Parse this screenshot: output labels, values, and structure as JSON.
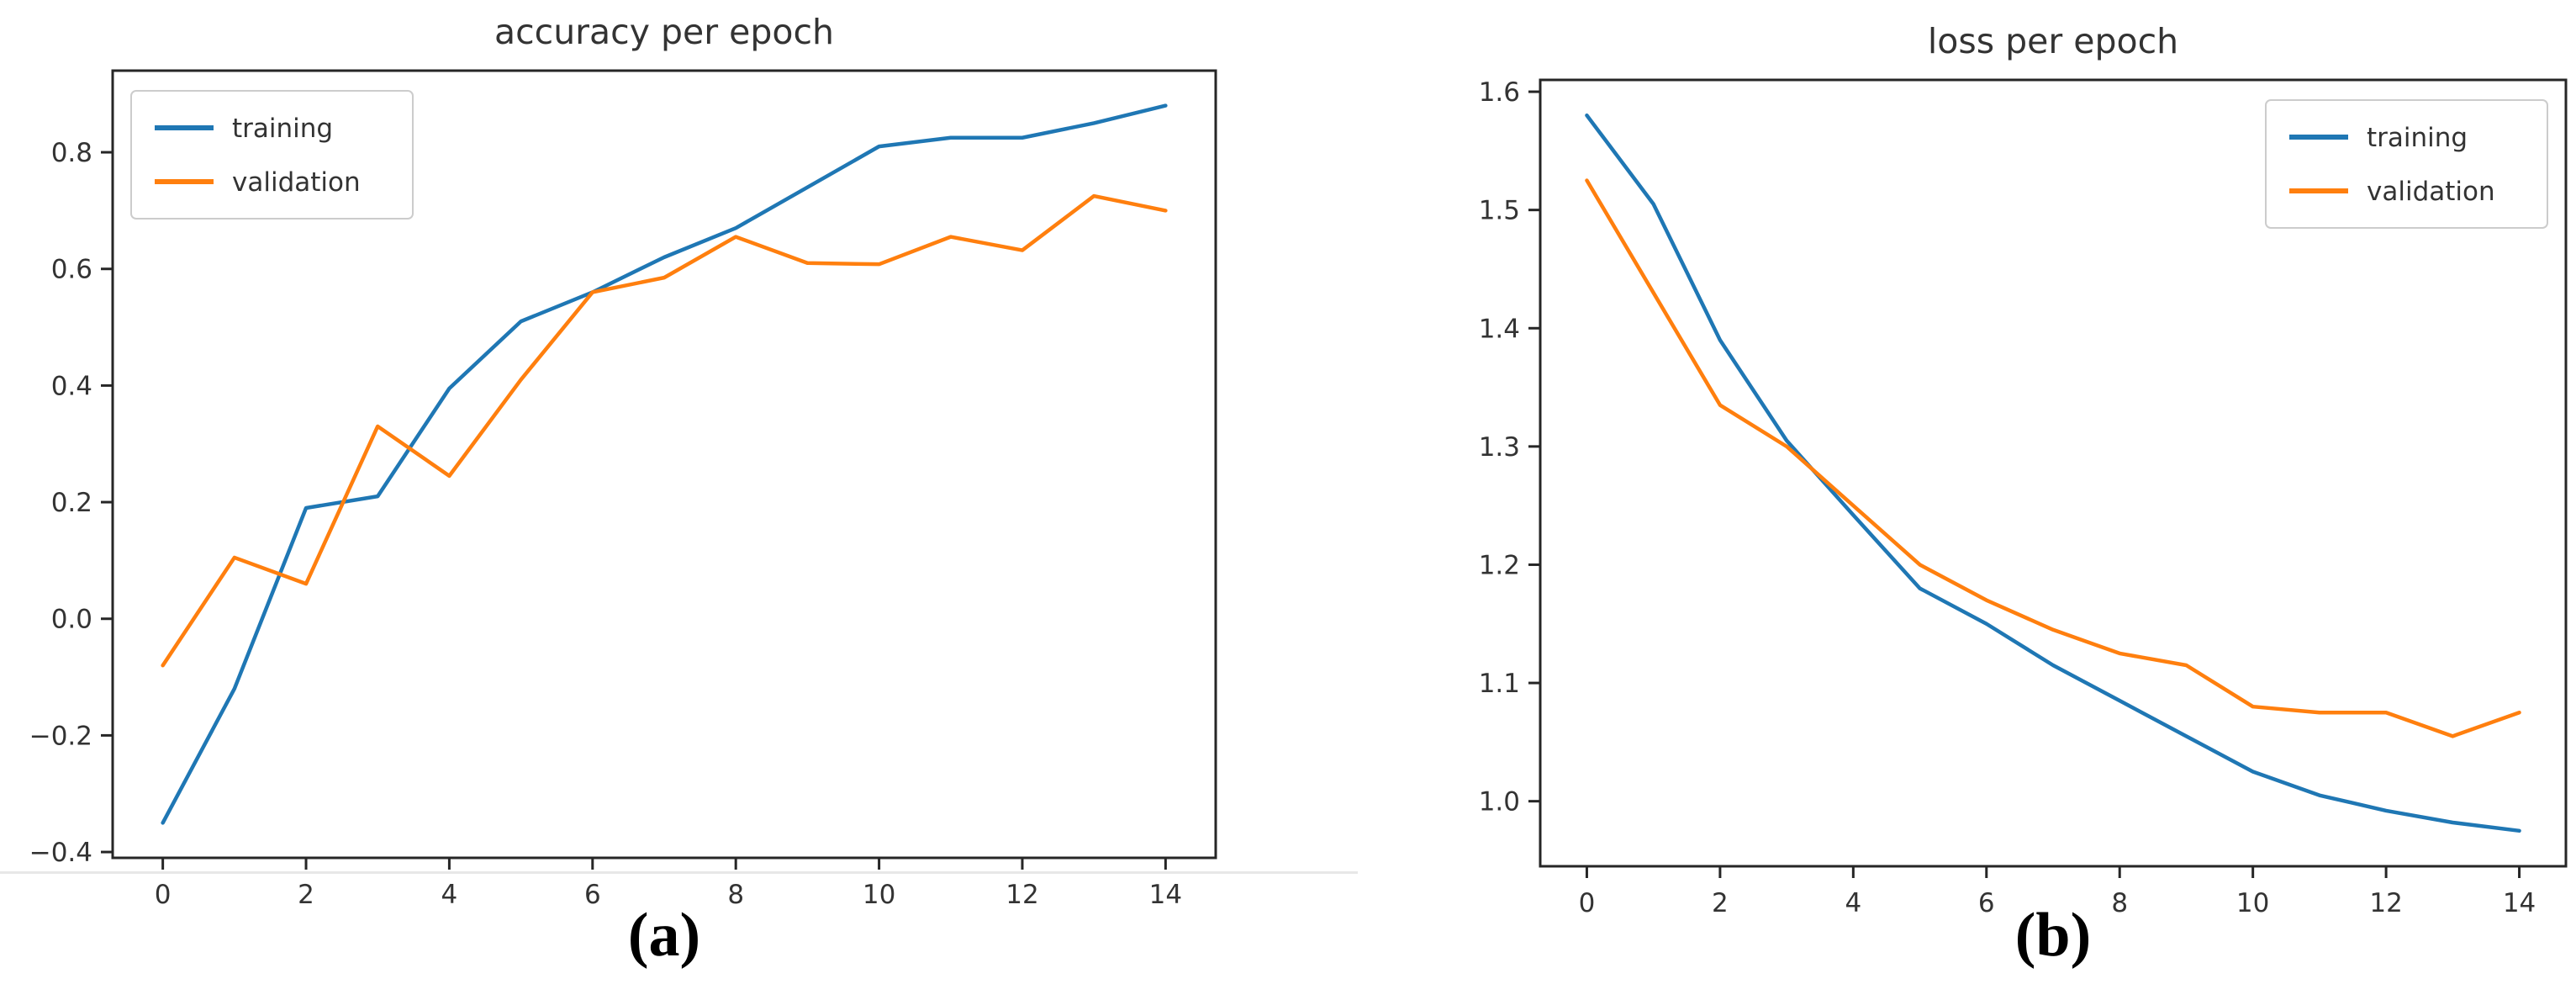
{
  "figure": {
    "captions": {
      "a": "(a)",
      "b": "(b)"
    }
  },
  "colors": {
    "training": "#1f77b4",
    "validation": "#ff7f0e",
    "axis": "#262626",
    "text": "#333333",
    "legend_border": "#cccccc",
    "separator": "#e7e7e7"
  },
  "chart_data": [
    {
      "id": "accuracy",
      "type": "line",
      "title": "accuracy per epoch",
      "xlabel": "",
      "ylabel": "",
      "x": [
        0,
        1,
        2,
        3,
        4,
        5,
        6,
        7,
        8,
        9,
        10,
        11,
        12,
        13,
        14
      ],
      "series": [
        {
          "name": "training",
          "color_key": "training",
          "values": [
            -0.35,
            -0.12,
            0.19,
            0.21,
            0.395,
            0.51,
            0.56,
            0.62,
            0.67,
            0.74,
            0.81,
            0.825,
            0.825,
            0.85,
            0.88
          ]
        },
        {
          "name": "validation",
          "color_key": "validation",
          "values": [
            -0.08,
            0.105,
            0.06,
            0.33,
            0.245,
            0.41,
            0.56,
            0.585,
            0.655,
            0.61,
            0.608,
            0.655,
            0.632,
            0.725,
            0.7
          ]
        }
      ],
      "xlim": [
        -0.7,
        14.7
      ],
      "ylim": [
        -0.41,
        0.94
      ],
      "xticks": [
        0,
        2,
        4,
        6,
        8,
        10,
        12,
        14
      ],
      "xtick_labels": [
        "0",
        "2",
        "4",
        "6",
        "8",
        "10",
        "12",
        "14"
      ],
      "yticks": [
        -0.4,
        -0.2,
        0.0,
        0.2,
        0.4,
        0.6,
        0.8
      ],
      "ytick_labels": [
        "−0.4",
        "−0.2",
        "0.0",
        "0.2",
        "0.4",
        "0.6",
        "0.8"
      ],
      "legend_position": "upper-left",
      "legend_entries": [
        "training",
        "validation"
      ],
      "grid": false
    },
    {
      "id": "loss",
      "type": "line",
      "title": "loss per epoch",
      "xlabel": "",
      "ylabel": "",
      "x": [
        0,
        1,
        2,
        3,
        4,
        5,
        6,
        7,
        8,
        9,
        10,
        11,
        12,
        13,
        14
      ],
      "series": [
        {
          "name": "training",
          "color_key": "training",
          "values": [
            1.58,
            1.505,
            1.39,
            1.305,
            1.242,
            1.18,
            1.15,
            1.115,
            1.085,
            1.055,
            1.025,
            1.005,
            0.992,
            0.982,
            0.975
          ]
        },
        {
          "name": "validation",
          "color_key": "validation",
          "values": [
            1.525,
            1.43,
            1.335,
            1.3,
            1.25,
            1.2,
            1.17,
            1.145,
            1.125,
            1.115,
            1.08,
            1.075,
            1.075,
            1.055,
            1.075
          ]
        }
      ],
      "xlim": [
        -0.7,
        14.7
      ],
      "ylim": [
        0.945,
        1.61
      ],
      "xticks": [
        0,
        2,
        4,
        6,
        8,
        10,
        12,
        14
      ],
      "xtick_labels": [
        "0",
        "2",
        "4",
        "6",
        "8",
        "10",
        "12",
        "14"
      ],
      "yticks": [
        1.0,
        1.1,
        1.2,
        1.3,
        1.4,
        1.5,
        1.6
      ],
      "ytick_labels": [
        "1.0",
        "1.1",
        "1.2",
        "1.3",
        "1.4",
        "1.5",
        "1.6"
      ],
      "legend_position": "upper-right",
      "legend_entries": [
        "training",
        "validation"
      ],
      "grid": false
    }
  ]
}
